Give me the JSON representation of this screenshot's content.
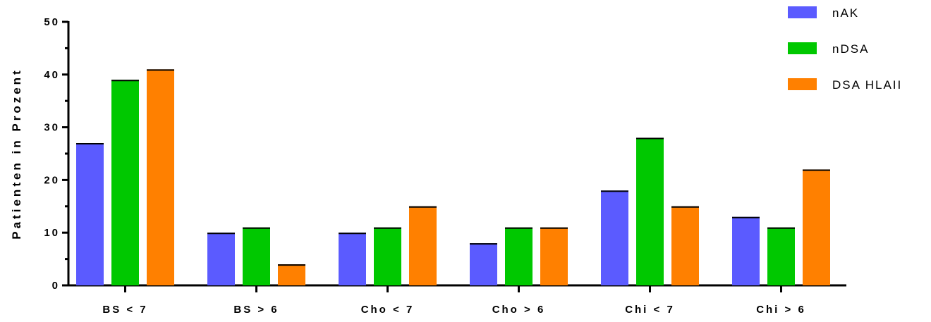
{
  "chart_data": {
    "type": "bar",
    "title": "",
    "xlabel": "",
    "ylabel": "Patienten in Prozent",
    "ylim": [
      0,
      50
    ],
    "yticks": [
      0,
      10,
      20,
      30,
      40,
      50
    ],
    "grid": false,
    "legend_position": "top-right",
    "categories": [
      "BS < 7",
      "BS > 6",
      "Cho < 7",
      "Cho > 6",
      "Chi < 7",
      "Chi > 6"
    ],
    "series": [
      {
        "name": "nAK",
        "color": "#5b5bff",
        "values": [
          27,
          10,
          10,
          8,
          18,
          13
        ]
      },
      {
        "name": "nDSA",
        "color": "#00c800",
        "values": [
          39,
          11,
          11,
          11,
          28,
          11
        ]
      },
      {
        "name": "DSA HLAII",
        "color": "#ff8000",
        "values": [
          41,
          4,
          15,
          11,
          15,
          22
        ]
      }
    ]
  }
}
